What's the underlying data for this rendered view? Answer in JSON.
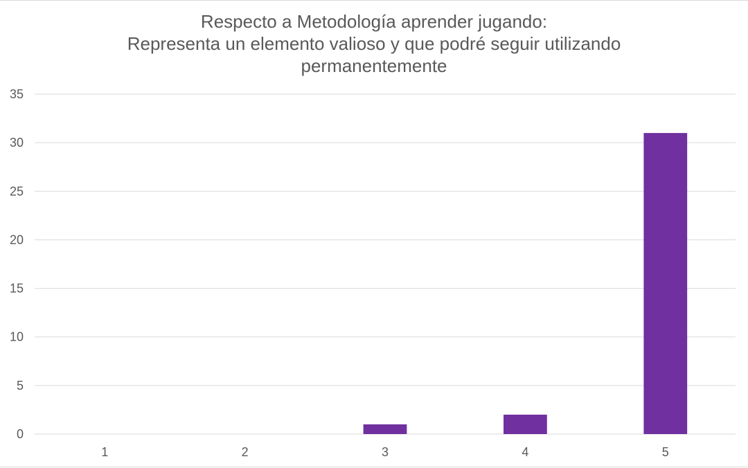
{
  "chart_data": {
    "type": "bar",
    "title": "Respecto a Metodología aprender jugando: Representa un elemento valioso y que podré seguir utilizando permanentemente",
    "title_lines": [
      "Respecto a Metodología aprender jugando:",
      "Representa un elemento valioso y que podré seguir utilizando",
      "permanentemente"
    ],
    "categories": [
      "1",
      "2",
      "3",
      "4",
      "5"
    ],
    "values": [
      0,
      0,
      1,
      2,
      31
    ],
    "ylim": [
      0,
      35
    ],
    "yticks": [
      0,
      5,
      10,
      15,
      20,
      25,
      30,
      35
    ],
    "xlabel": "",
    "ylabel": "",
    "grid": true,
    "legend": "none",
    "bar_color": "#7030a0",
    "grid_color": "#d9d9d9"
  }
}
